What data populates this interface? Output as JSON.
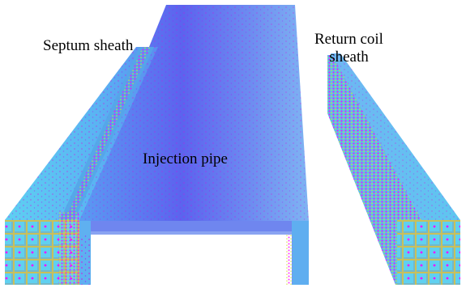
{
  "labels": {
    "septum_sheath": "Septum sheath",
    "injection_pipe": "Injection pipe",
    "return_coil_line1": "Return coil",
    "return_coil_line2": "sheath"
  },
  "colors": {
    "pipe_blue": "#5a73f0",
    "pipe_center": "#6a5ef0",
    "sheath_cyan": "#58c8f0",
    "field_magenta": "#ff00ff",
    "field_yellow": "#d6d640",
    "edge_green": "#60e0a0"
  }
}
